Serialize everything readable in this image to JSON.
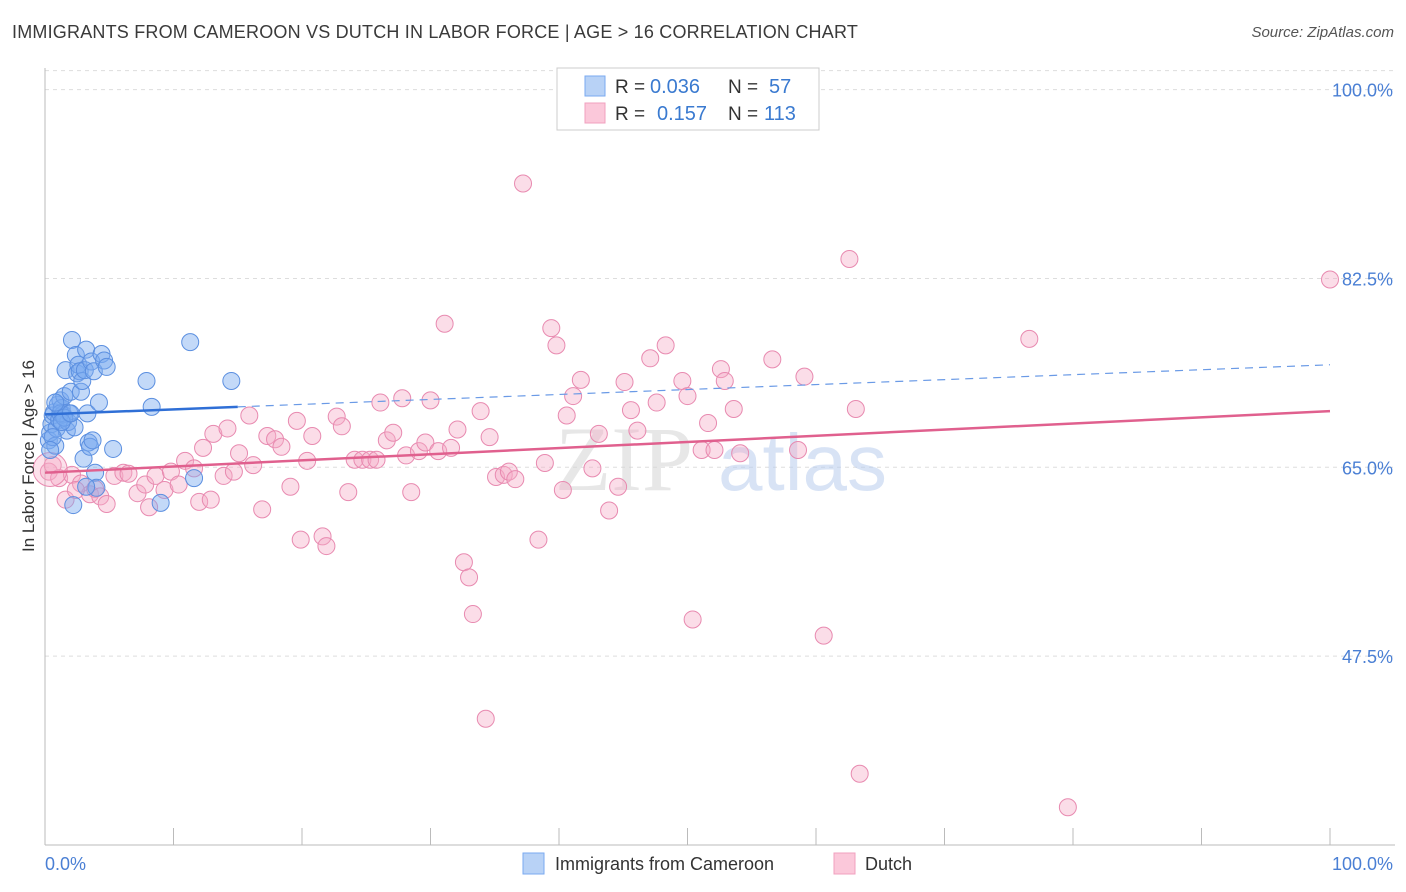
{
  "header": {
    "title": "IMMIGRANTS FROM CAMEROON VS DUTCH IN LABOR FORCE | AGE > 16 CORRELATION CHART",
    "source": "Source: ZipAtlas.com"
  },
  "watermark": {
    "zip": "ZIP",
    "atlas": "atlas"
  },
  "legend": {
    "rows": [
      {
        "r_label": "R =",
        "r_value": "0.036",
        "n_label": "N =",
        "n_value": "57"
      },
      {
        "r_label": "R =",
        "r_value": "0.157",
        "n_label": "N =",
        "n_value": "113"
      }
    ]
  },
  "chart_data": {
    "type": "scatter",
    "title": "IMMIGRANTS FROM CAMEROON VS DUTCH IN LABOR FORCE | AGE > 16 CORRELATION CHART",
    "xlabel": "",
    "ylabel": "In Labor Force | Age > 16",
    "xlim": [
      0,
      100
    ],
    "ylim": [
      30,
      102
    ],
    "x_tick_labels": [
      "0.0%",
      "100.0%"
    ],
    "y_ticks": [
      47.5,
      65.0,
      82.5,
      100.0
    ],
    "y_tick_labels": [
      "47.5%",
      "65.0%",
      "82.5%",
      "100.0%"
    ],
    "grid": true,
    "legend_position": "bottom-center",
    "series": [
      {
        "name": "Immigrants from Cameroon",
        "color": "#7aaaf0",
        "stroke": "#5b8fe0",
        "trend": {
          "x": [
            0,
            15
          ],
          "y": [
            69.9,
            70.6
          ],
          "dashed_to": [
            100,
            74.5
          ]
        },
        "points": [
          [
            0.3,
            67.5
          ],
          [
            0.4,
            68.2
          ],
          [
            0.5,
            69.0
          ],
          [
            0.6,
            69.8
          ],
          [
            0.7,
            70.1
          ],
          [
            0.8,
            67.0
          ],
          [
            0.9,
            68.6
          ],
          [
            1.0,
            70.8
          ],
          [
            1.1,
            69.4
          ],
          [
            1.2,
            71.2
          ],
          [
            1.3,
            70.5
          ],
          [
            1.4,
            69.9
          ],
          [
            1.5,
            71.6
          ],
          [
            1.6,
            74.0
          ],
          [
            1.7,
            68.4
          ],
          [
            1.8,
            69.2
          ],
          [
            1.9,
            70.0
          ],
          [
            2.0,
            72.0
          ],
          [
            2.1,
            76.8
          ],
          [
            2.2,
            61.5
          ],
          [
            2.3,
            68.7
          ],
          [
            2.4,
            75.4
          ],
          [
            2.5,
            73.7
          ],
          [
            2.6,
            74.5
          ],
          [
            2.7,
            73.9
          ],
          [
            2.8,
            72.0
          ],
          [
            2.9,
            73.0
          ],
          [
            3.0,
            65.8
          ],
          [
            3.1,
            74.0
          ],
          [
            3.2,
            75.9
          ],
          [
            3.3,
            70.0
          ],
          [
            3.4,
            67.3
          ],
          [
            3.5,
            66.9
          ],
          [
            3.6,
            74.8
          ],
          [
            3.7,
            67.5
          ],
          [
            3.8,
            73.9
          ],
          [
            3.9,
            64.5
          ],
          [
            4.0,
            63.1
          ],
          [
            4.2,
            71.0
          ],
          [
            4.4,
            75.5
          ],
          [
            4.6,
            74.9
          ],
          [
            4.8,
            74.3
          ],
          [
            5.3,
            66.7
          ],
          [
            7.9,
            73.0
          ],
          [
            8.3,
            70.6
          ],
          [
            9.0,
            61.7
          ],
          [
            11.3,
            76.6
          ],
          [
            11.6,
            64.0
          ],
          [
            14.5,
            73.0
          ],
          [
            1.2,
            70.0
          ],
          [
            1.5,
            69.6
          ],
          [
            0.8,
            71.0
          ],
          [
            0.6,
            67.8
          ],
          [
            1.3,
            69.2
          ],
          [
            2.0,
            70.0
          ],
          [
            3.2,
            63.2
          ],
          [
            0.4,
            66.6
          ]
        ]
      },
      {
        "name": "Dutch",
        "color": "#f5aac6",
        "stroke": "#e88ab0",
        "trend": {
          "x": [
            0,
            100
          ],
          "y": [
            64.5,
            70.2
          ]
        },
        "points": [
          [
            0.3,
            64.6
          ],
          [
            0.6,
            65.2
          ],
          [
            1.1,
            64.0
          ],
          [
            1.6,
            62.0
          ],
          [
            2.1,
            64.3
          ],
          [
            2.8,
            63.5
          ],
          [
            3.5,
            62.5
          ],
          [
            3.9,
            63.0
          ],
          [
            4.3,
            62.3
          ],
          [
            4.8,
            61.6
          ],
          [
            5.4,
            64.2
          ],
          [
            6.1,
            64.5
          ],
          [
            6.5,
            64.4
          ],
          [
            7.2,
            62.6
          ],
          [
            7.8,
            63.4
          ],
          [
            8.1,
            61.3
          ],
          [
            8.6,
            64.2
          ],
          [
            9.3,
            62.9
          ],
          [
            9.8,
            64.6
          ],
          [
            10.4,
            63.4
          ],
          [
            10.9,
            65.6
          ],
          [
            11.6,
            64.9
          ],
          [
            12.0,
            61.8
          ],
          [
            12.3,
            66.8
          ],
          [
            12.9,
            62.0
          ],
          [
            13.1,
            68.1
          ],
          [
            13.9,
            64.2
          ],
          [
            14.2,
            68.6
          ],
          [
            14.7,
            64.6
          ],
          [
            15.1,
            66.3
          ],
          [
            15.9,
            69.8
          ],
          [
            16.2,
            65.2
          ],
          [
            16.9,
            61.1
          ],
          [
            17.3,
            67.9
          ],
          [
            17.9,
            67.6
          ],
          [
            18.4,
            66.9
          ],
          [
            19.1,
            63.2
          ],
          [
            19.6,
            69.3
          ],
          [
            19.9,
            58.3
          ],
          [
            20.4,
            65.6
          ],
          [
            20.8,
            67.9
          ],
          [
            21.6,
            58.6
          ],
          [
            21.9,
            57.7
          ],
          [
            22.7,
            69.7
          ],
          [
            23.1,
            68.8
          ],
          [
            23.6,
            62.7
          ],
          [
            24.1,
            65.7
          ],
          [
            24.7,
            65.7
          ],
          [
            25.3,
            65.7
          ],
          [
            25.8,
            65.7
          ],
          [
            26.1,
            71.0
          ],
          [
            26.6,
            67.5
          ],
          [
            27.1,
            68.2
          ],
          [
            27.8,
            71.4
          ],
          [
            28.1,
            66.1
          ],
          [
            28.5,
            62.7
          ],
          [
            29.1,
            66.5
          ],
          [
            29.6,
            67.3
          ],
          [
            30.0,
            71.2
          ],
          [
            30.6,
            66.5
          ],
          [
            31.1,
            78.3
          ],
          [
            31.6,
            66.8
          ],
          [
            32.1,
            68.5
          ],
          [
            32.6,
            56.2
          ],
          [
            33.0,
            54.8
          ],
          [
            33.3,
            51.4
          ],
          [
            33.9,
            70.2
          ],
          [
            34.3,
            41.7
          ],
          [
            34.6,
            67.8
          ],
          [
            35.1,
            64.1
          ],
          [
            35.7,
            64.3
          ],
          [
            36.1,
            64.6
          ],
          [
            36.6,
            63.9
          ],
          [
            37.2,
            91.3
          ],
          [
            38.4,
            58.3
          ],
          [
            38.9,
            65.4
          ],
          [
            39.4,
            77.9
          ],
          [
            39.8,
            76.3
          ],
          [
            40.3,
            62.9
          ],
          [
            40.6,
            69.8
          ],
          [
            41.1,
            71.6
          ],
          [
            41.7,
            73.1
          ],
          [
            42.6,
            64.9
          ],
          [
            43.1,
            68.1
          ],
          [
            43.9,
            61.0
          ],
          [
            44.6,
            63.2
          ],
          [
            45.1,
            72.9
          ],
          [
            45.6,
            70.3
          ],
          [
            46.1,
            68.4
          ],
          [
            47.1,
            75.1
          ],
          [
            47.6,
            71.0
          ],
          [
            48.3,
            76.3
          ],
          [
            49.6,
            73.0
          ],
          [
            50.0,
            71.6
          ],
          [
            50.4,
            50.9
          ],
          [
            51.1,
            66.6
          ],
          [
            51.6,
            69.1
          ],
          [
            52.1,
            66.6
          ],
          [
            52.6,
            74.1
          ],
          [
            52.9,
            73.0
          ],
          [
            53.6,
            70.4
          ],
          [
            54.1,
            66.3
          ],
          [
            56.6,
            75.0
          ],
          [
            58.6,
            66.6
          ],
          [
            59.1,
            73.4
          ],
          [
            60.6,
            49.4
          ],
          [
            62.6,
            84.3
          ],
          [
            63.1,
            70.4
          ],
          [
            63.4,
            36.6
          ],
          [
            76.6,
            76.9
          ],
          [
            79.6,
            33.5
          ],
          [
            100.0,
            82.4
          ],
          [
            2.4,
            62.9
          ]
        ]
      }
    ]
  }
}
